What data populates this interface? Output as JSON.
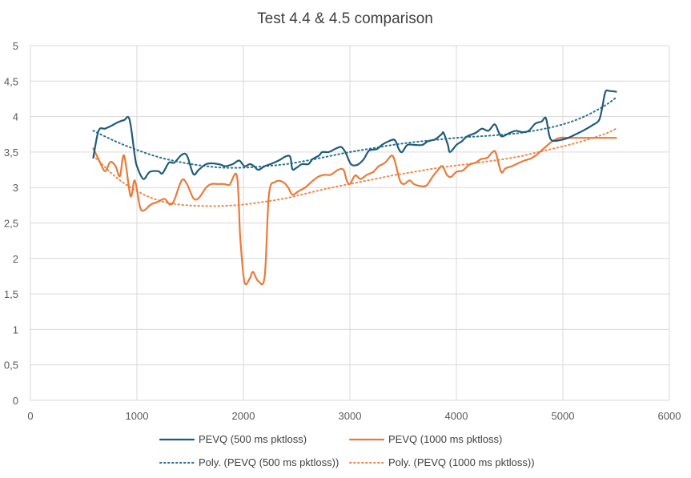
{
  "chart_data": {
    "type": "line",
    "title": "Test 4.4 & 4.5 comparison",
    "xlabel": "",
    "ylabel": "",
    "xlim": [
      0,
      6000
    ],
    "ylim": [
      0,
      5
    ],
    "x_ticks": [
      "0",
      "1000",
      "2000",
      "3000",
      "4000",
      "5000",
      "6000"
    ],
    "y_ticks": [
      "0",
      "0,5",
      "1",
      "1,5",
      "2",
      "2,5",
      "3",
      "3,5",
      "4",
      "4,5",
      "5"
    ],
    "grid": true,
    "legend_position": "bottom",
    "series": [
      {
        "name": "PEVQ (500 ms pktloss)",
        "style": "solid",
        "color": "#1f5c7a",
        "points": [
          [
            590,
            3.42
          ],
          [
            640,
            3.8
          ],
          [
            700,
            3.83
          ],
          [
            760,
            3.87
          ],
          [
            820,
            3.92
          ],
          [
            880,
            3.95
          ],
          [
            930,
            3.96
          ],
          [
            980,
            3.45
          ],
          [
            1000,
            3.3
          ],
          [
            1060,
            3.12
          ],
          [
            1120,
            3.22
          ],
          [
            1200,
            3.23
          ],
          [
            1240,
            3.2
          ],
          [
            1300,
            3.35
          ],
          [
            1350,
            3.35
          ],
          [
            1420,
            3.46
          ],
          [
            1470,
            3.45
          ],
          [
            1530,
            3.19
          ],
          [
            1580,
            3.25
          ],
          [
            1650,
            3.33
          ],
          [
            1720,
            3.34
          ],
          [
            1790,
            3.32
          ],
          [
            1830,
            3.3
          ],
          [
            1900,
            3.33
          ],
          [
            1960,
            3.38
          ],
          [
            2010,
            3.3
          ],
          [
            2060,
            3.33
          ],
          [
            2100,
            3.3
          ],
          [
            2140,
            3.25
          ],
          [
            2200,
            3.3
          ],
          [
            2270,
            3.34
          ],
          [
            2330,
            3.38
          ],
          [
            2400,
            3.44
          ],
          [
            2440,
            3.43
          ],
          [
            2460,
            3.26
          ],
          [
            2500,
            3.28
          ],
          [
            2550,
            3.33
          ],
          [
            2610,
            3.33
          ],
          [
            2650,
            3.4
          ],
          [
            2710,
            3.45
          ],
          [
            2740,
            3.5
          ],
          [
            2800,
            3.5
          ],
          [
            2870,
            3.55
          ],
          [
            2920,
            3.57
          ],
          [
            2960,
            3.49
          ],
          [
            3010,
            3.33
          ],
          [
            3070,
            3.32
          ],
          [
            3130,
            3.4
          ],
          [
            3180,
            3.52
          ],
          [
            3250,
            3.54
          ],
          [
            3300,
            3.6
          ],
          [
            3360,
            3.65
          ],
          [
            3420,
            3.67
          ],
          [
            3460,
            3.54
          ],
          [
            3490,
            3.5
          ],
          [
            3540,
            3.6
          ],
          [
            3610,
            3.6
          ],
          [
            3680,
            3.6
          ],
          [
            3730,
            3.65
          ],
          [
            3800,
            3.68
          ],
          [
            3860,
            3.75
          ],
          [
            3880,
            3.77
          ],
          [
            3920,
            3.6
          ],
          [
            3940,
            3.5
          ],
          [
            4000,
            3.6
          ],
          [
            4050,
            3.65
          ],
          [
            4100,
            3.72
          ],
          [
            4180,
            3.77
          ],
          [
            4240,
            3.83
          ],
          [
            4300,
            3.8
          ],
          [
            4360,
            3.89
          ],
          [
            4400,
            3.77
          ],
          [
            4430,
            3.72
          ],
          [
            4500,
            3.77
          ],
          [
            4560,
            3.8
          ],
          [
            4620,
            3.78
          ],
          [
            4680,
            3.8
          ],
          [
            4740,
            3.9
          ],
          [
            4800,
            3.93
          ],
          [
            4840,
            3.98
          ],
          [
            4870,
            3.75
          ],
          [
            4900,
            3.66
          ],
          [
            4980,
            3.67
          ],
          [
            5050,
            3.7
          ],
          [
            5120,
            3.75
          ],
          [
            5200,
            3.81
          ],
          [
            5280,
            3.88
          ],
          [
            5340,
            3.95
          ],
          [
            5370,
            4.13
          ],
          [
            5400,
            4.35
          ],
          [
            5440,
            4.36
          ],
          [
            5500,
            4.35
          ]
        ]
      },
      {
        "name": "PEVQ (1000 ms pktloss)",
        "style": "solid",
        "color": "#ea7a3a",
        "points": [
          [
            590,
            3.55
          ],
          [
            640,
            3.4
          ],
          [
            700,
            3.23
          ],
          [
            750,
            3.36
          ],
          [
            800,
            3.3
          ],
          [
            840,
            3.16
          ],
          [
            880,
            3.45
          ],
          [
            940,
            2.88
          ],
          [
            980,
            3.1
          ],
          [
            1030,
            2.72
          ],
          [
            1070,
            2.68
          ],
          [
            1130,
            2.76
          ],
          [
            1200,
            2.8
          ],
          [
            1260,
            2.84
          ],
          [
            1310,
            2.76
          ],
          [
            1350,
            2.82
          ],
          [
            1420,
            3.1
          ],
          [
            1470,
            3.05
          ],
          [
            1530,
            2.85
          ],
          [
            1580,
            2.85
          ],
          [
            1650,
            3.0
          ],
          [
            1700,
            3.05
          ],
          [
            1760,
            3.05
          ],
          [
            1820,
            3.05
          ],
          [
            1870,
            3.04
          ],
          [
            1940,
            3.16
          ],
          [
            1970,
            2.3
          ],
          [
            2010,
            1.67
          ],
          [
            2060,
            1.72
          ],
          [
            2090,
            1.81
          ],
          [
            2140,
            1.68
          ],
          [
            2200,
            1.75
          ],
          [
            2240,
            2.9
          ],
          [
            2300,
            3.08
          ],
          [
            2370,
            3.08
          ],
          [
            2420,
            3.0
          ],
          [
            2460,
            2.9
          ],
          [
            2520,
            2.95
          ],
          [
            2580,
            3.0
          ],
          [
            2640,
            3.08
          ],
          [
            2700,
            3.15
          ],
          [
            2760,
            3.18
          ],
          [
            2820,
            3.18
          ],
          [
            2890,
            3.25
          ],
          [
            2940,
            3.25
          ],
          [
            2970,
            3.1
          ],
          [
            3000,
            3.05
          ],
          [
            3050,
            3.17
          ],
          [
            3100,
            3.12
          ],
          [
            3160,
            3.18
          ],
          [
            3220,
            3.22
          ],
          [
            3270,
            3.3
          ],
          [
            3330,
            3.35
          ],
          [
            3390,
            3.45
          ],
          [
            3420,
            3.38
          ],
          [
            3470,
            3.1
          ],
          [
            3510,
            3.05
          ],
          [
            3560,
            3.1
          ],
          [
            3600,
            3.05
          ],
          [
            3660,
            3.02
          ],
          [
            3720,
            3.03
          ],
          [
            3780,
            3.16
          ],
          [
            3840,
            3.27
          ],
          [
            3870,
            3.3
          ],
          [
            3910,
            3.18
          ],
          [
            3950,
            3.15
          ],
          [
            4000,
            3.22
          ],
          [
            4060,
            3.24
          ],
          [
            4120,
            3.32
          ],
          [
            4180,
            3.35
          ],
          [
            4230,
            3.4
          ],
          [
            4290,
            3.42
          ],
          [
            4340,
            3.5
          ],
          [
            4370,
            3.49
          ],
          [
            4420,
            3.22
          ],
          [
            4460,
            3.27
          ],
          [
            4520,
            3.3
          ],
          [
            4590,
            3.35
          ],
          [
            4640,
            3.38
          ],
          [
            4700,
            3.41
          ],
          [
            4760,
            3.47
          ],
          [
            4820,
            3.55
          ],
          [
            4900,
            3.65
          ],
          [
            4970,
            3.7
          ],
          [
            5050,
            3.7
          ],
          [
            5150,
            3.7
          ],
          [
            5300,
            3.7
          ],
          [
            5500,
            3.7
          ]
        ]
      },
      {
        "name": "Poly. (PEVQ (500 ms pktloss))",
        "style": "dotted",
        "color": "#2b6f8f",
        "points": [
          [
            590,
            3.8
          ],
          [
            800,
            3.65
          ],
          [
            1000,
            3.53
          ],
          [
            1200,
            3.43
          ],
          [
            1400,
            3.36
          ],
          [
            1600,
            3.31
          ],
          [
            1800,
            3.28
          ],
          [
            2000,
            3.28
          ],
          [
            2200,
            3.3
          ],
          [
            2400,
            3.33
          ],
          [
            2600,
            3.38
          ],
          [
            2800,
            3.44
          ],
          [
            3000,
            3.5
          ],
          [
            3200,
            3.55
          ],
          [
            3400,
            3.6
          ],
          [
            3600,
            3.64
          ],
          [
            3800,
            3.67
          ],
          [
            4000,
            3.7
          ],
          [
            4200,
            3.72
          ],
          [
            4400,
            3.74
          ],
          [
            4600,
            3.77
          ],
          [
            4800,
            3.82
          ],
          [
            5000,
            3.89
          ],
          [
            5200,
            4.0
          ],
          [
            5400,
            4.16
          ],
          [
            5500,
            4.27
          ]
        ]
      },
      {
        "name": "Poly. (PEVQ (1000 ms pktloss))",
        "style": "dotted",
        "color": "#ee8a52",
        "points": [
          [
            590,
            3.45
          ],
          [
            800,
            3.15
          ],
          [
            1000,
            2.95
          ],
          [
            1200,
            2.82
          ],
          [
            1400,
            2.76
          ],
          [
            1600,
            2.74
          ],
          [
            1800,
            2.74
          ],
          [
            2000,
            2.76
          ],
          [
            2200,
            2.8
          ],
          [
            2400,
            2.85
          ],
          [
            2600,
            2.92
          ],
          [
            2800,
            2.99
          ],
          [
            3000,
            3.05
          ],
          [
            3200,
            3.11
          ],
          [
            3400,
            3.17
          ],
          [
            3600,
            3.22
          ],
          [
            3800,
            3.27
          ],
          [
            4000,
            3.31
          ],
          [
            4200,
            3.35
          ],
          [
            4400,
            3.39
          ],
          [
            4600,
            3.44
          ],
          [
            4800,
            3.51
          ],
          [
            5000,
            3.58
          ],
          [
            5200,
            3.66
          ],
          [
            5400,
            3.76
          ],
          [
            5500,
            3.83
          ]
        ]
      }
    ]
  }
}
